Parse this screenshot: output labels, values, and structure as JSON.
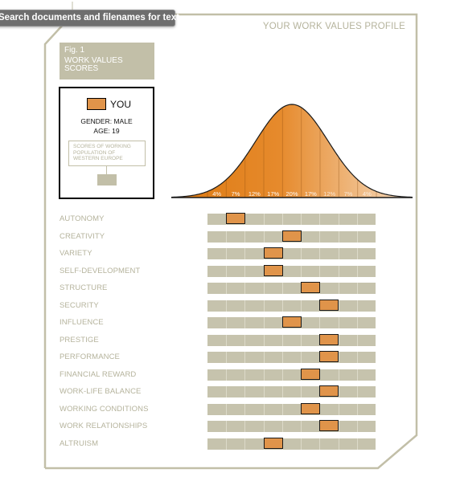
{
  "tooltip": "Search documents and filenames for text",
  "profile_title": "YOUR WORK VALUES PROFILE",
  "figure": {
    "number": "Fig. 1",
    "title_line1": "WORK VALUES",
    "title_line2": "SCORES"
  },
  "legend": {
    "you": "YOU",
    "gender": "GENDER: MALE",
    "age": "AGE: 19",
    "population_line1": "SCORES OF WORKING",
    "population_line2": "POPULATION OF",
    "population_line3": "WESTERN EUROPE"
  },
  "colors": {
    "frame": "#c2bfa8",
    "track": "#c6c3ad",
    "marker": "#e0944a",
    "label": "#b5b39c",
    "curve_dark": "#dd7a12",
    "curve_light": "#f6dcc0"
  },
  "chart_data": {
    "type": "bar",
    "title": "WORK VALUES SCORES",
    "scale_bins": 9,
    "distribution": {
      "type": "area",
      "bins": [
        "4%",
        "7%",
        "12%",
        "17%",
        "20%",
        "17%",
        "12%",
        "7%",
        "4%"
      ],
      "values": [
        4,
        7,
        12,
        17,
        20,
        17,
        12,
        7,
        4
      ]
    },
    "categories": [
      "AUTONOMY",
      "CREATIVITY",
      "VARIETY",
      "SELF-DEVELOPMENT",
      "STRUCTURE",
      "SECURITY",
      "INFLUENCE",
      "PRESTIGE",
      "PERFORMANCE",
      "FINANCIAL REWARD",
      "WORK-LIFE BALANCE",
      "WORKING CONDITIONS",
      "WORK RELATIONSHIPS",
      "ALTRUISM"
    ],
    "values": [
      2,
      5,
      4,
      4,
      6,
      7,
      5,
      7,
      7,
      6,
      7,
      6,
      7,
      4
    ]
  }
}
